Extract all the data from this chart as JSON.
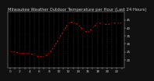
{
  "title": "Milwaukee Weather Outdoor Temperature per Hour (Last 24 Hours)",
  "hours": [
    0,
    1,
    2,
    3,
    4,
    5,
    6,
    7,
    8,
    9,
    10,
    11,
    12,
    13,
    14,
    15,
    16,
    17,
    18,
    19,
    20,
    21,
    22,
    23
  ],
  "temps": [
    25,
    25,
    24,
    24,
    24,
    23,
    22,
    22,
    24,
    28,
    33,
    38,
    43,
    44,
    42,
    39,
    37,
    40,
    43,
    43,
    42,
    43,
    43,
    43
  ],
  "line_color": "#ff0000",
  "marker_color": "#000000",
  "plot_bg_color": "#000000",
  "fig_bg_color": "#111111",
  "text_color": "#cccccc",
  "grid_color": "#555555",
  "ylim": [
    15,
    50
  ],
  "ytick_vals": [
    20,
    25,
    30,
    35,
    40,
    45
  ],
  "ytick_labels": [
    "20",
    "25",
    "30",
    "35",
    "40",
    "45"
  ],
  "title_fontsize": 3.8,
  "tick_fontsize": 3.0,
  "linewidth": 0.7,
  "markersize": 1.5
}
